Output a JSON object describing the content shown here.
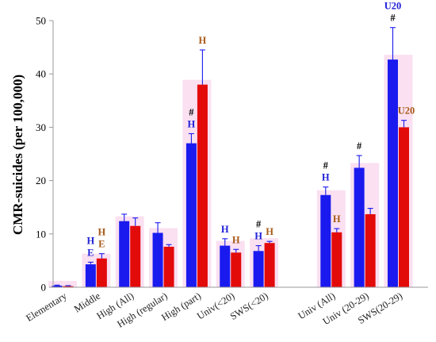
{
  "chart_data": {
    "type": "bar",
    "ylabel": "CMR-suicides (per 100,000)",
    "ylim": [
      0,
      50
    ],
    "yticks": [
      0,
      10,
      20,
      30,
      40,
      50
    ],
    "grid": false,
    "legend": "none",
    "colors": {
      "blue": "#1a1aef",
      "red": "#e30a0a",
      "blue_label": "#2020d8",
      "red_label": "#a85a18",
      "highlight": "#f6c6e6",
      "axis": "#999999"
    },
    "categories": [
      {
        "label": "Elementary",
        "blue": 0.3,
        "blue_err": 0.1,
        "red": 0.2,
        "red_err": 0.1,
        "blue_ann": [],
        "red_ann": []
      },
      {
        "label": "Middle",
        "blue": 4.3,
        "blue_err": 0.4,
        "red": 5.4,
        "red_err": 0.9,
        "blue_ann": [
          "E",
          "H"
        ],
        "red_ann": [
          "E",
          "H"
        ]
      },
      {
        "label": "High (All)",
        "blue": 12.4,
        "blue_err": 1.3,
        "red": 11.5,
        "red_err": 1.5,
        "blue_ann": [],
        "red_ann": []
      },
      {
        "label": "High (regular)",
        "blue": 10.2,
        "blue_err": 1.9,
        "red": 7.6,
        "red_err": 0.4,
        "blue_ann": [],
        "red_ann": []
      },
      {
        "label": "High (part)",
        "blue": 27.0,
        "blue_err": 1.8,
        "red": 38.0,
        "red_err": 6.5,
        "blue_ann": [
          "H",
          "#"
        ],
        "red_ann": [
          "H"
        ]
      },
      {
        "label": "Univ(<20)",
        "blue": 7.8,
        "blue_err": 1.3,
        "red": 6.5,
        "red_err": 0.6,
        "blue_ann": [
          "H"
        ],
        "red_ann": [
          "H"
        ]
      },
      {
        "label": "SWS(<20)",
        "blue": 6.8,
        "blue_err": 1.0,
        "red": 8.3,
        "red_err": 0.3,
        "blue_ann": [
          "H",
          "#"
        ],
        "red_ann": [
          "H"
        ]
      },
      {
        "label": "",
        "blue": null,
        "red": null,
        "blue_ann": [],
        "red_ann": []
      },
      {
        "label": "Univ (All)",
        "blue": 17.3,
        "blue_err": 1.5,
        "red": 10.3,
        "red_err": 0.7,
        "blue_ann": [
          "H",
          "#"
        ],
        "red_ann": [
          "H"
        ]
      },
      {
        "label": "Univ (20-29)",
        "blue": 22.4,
        "blue_err": 2.3,
        "red": 13.7,
        "red_err": 1.1,
        "blue_ann": [
          "#"
        ],
        "red_ann": []
      },
      {
        "label": "SWS(20-29)",
        "blue": 42.7,
        "blue_err": 6.0,
        "red": 30.0,
        "red_err": 1.3,
        "blue_ann": [
          "#",
          "U20"
        ],
        "red_ann": [
          "U20"
        ]
      }
    ]
  }
}
